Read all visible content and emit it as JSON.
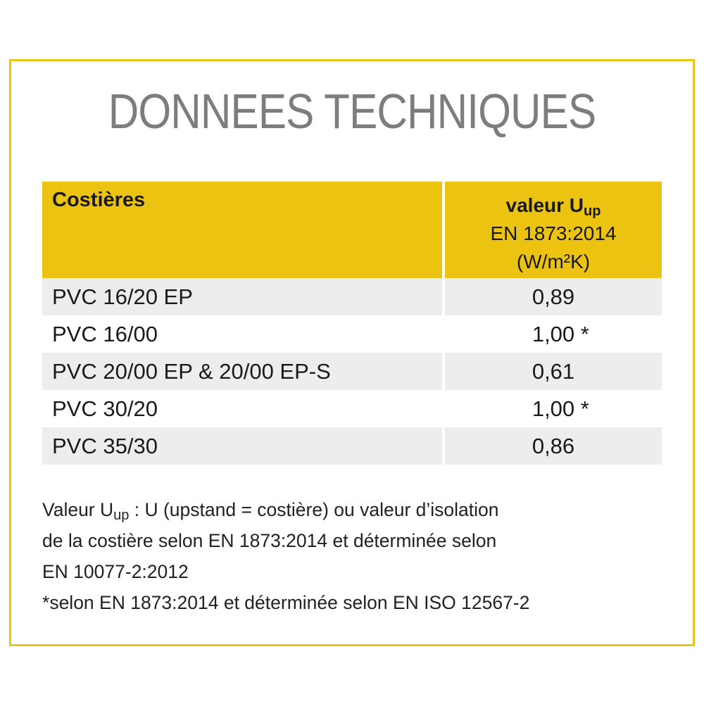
{
  "title": "DONNEES TECHNIQUES",
  "colors": {
    "accent": "#edc312",
    "border": "#e9c41c",
    "row_alt": "#ededed",
    "title": "#7d7d7d"
  },
  "table": {
    "header": {
      "col1": "Costières",
      "col2_label": "valeur U",
      "col2_sub": "up",
      "col2_line2": "EN 1873:2014",
      "col2_line3": "(W/m²K)"
    },
    "rows": [
      {
        "name": "PVC 16/20 EP",
        "value": "0,89",
        "mark": ""
      },
      {
        "name": "PVC 16/00",
        "value": "1,00",
        "mark": " *"
      },
      {
        "name": "PVC 20/00 EP & 20/00 EP-S",
        "value": "0,61",
        "mark": ""
      },
      {
        "name": "PVC 30/20",
        "value": "1,00",
        "mark": " *"
      },
      {
        "name": "PVC 35/30",
        "value": "0,86",
        "mark": ""
      }
    ]
  },
  "notes": {
    "line1_prefix": "Valeur U",
    "line1_sub": "up",
    "line1_rest": " : U (upstand = costière) ou valeur d’isolation",
    "line2": "de la costière selon EN 1873:2014 et déterminée selon",
    "line3": "EN 10077-2:2012",
    "line4": "*selon EN 1873:2014 et déterminée selon EN ISO 12567-2"
  }
}
